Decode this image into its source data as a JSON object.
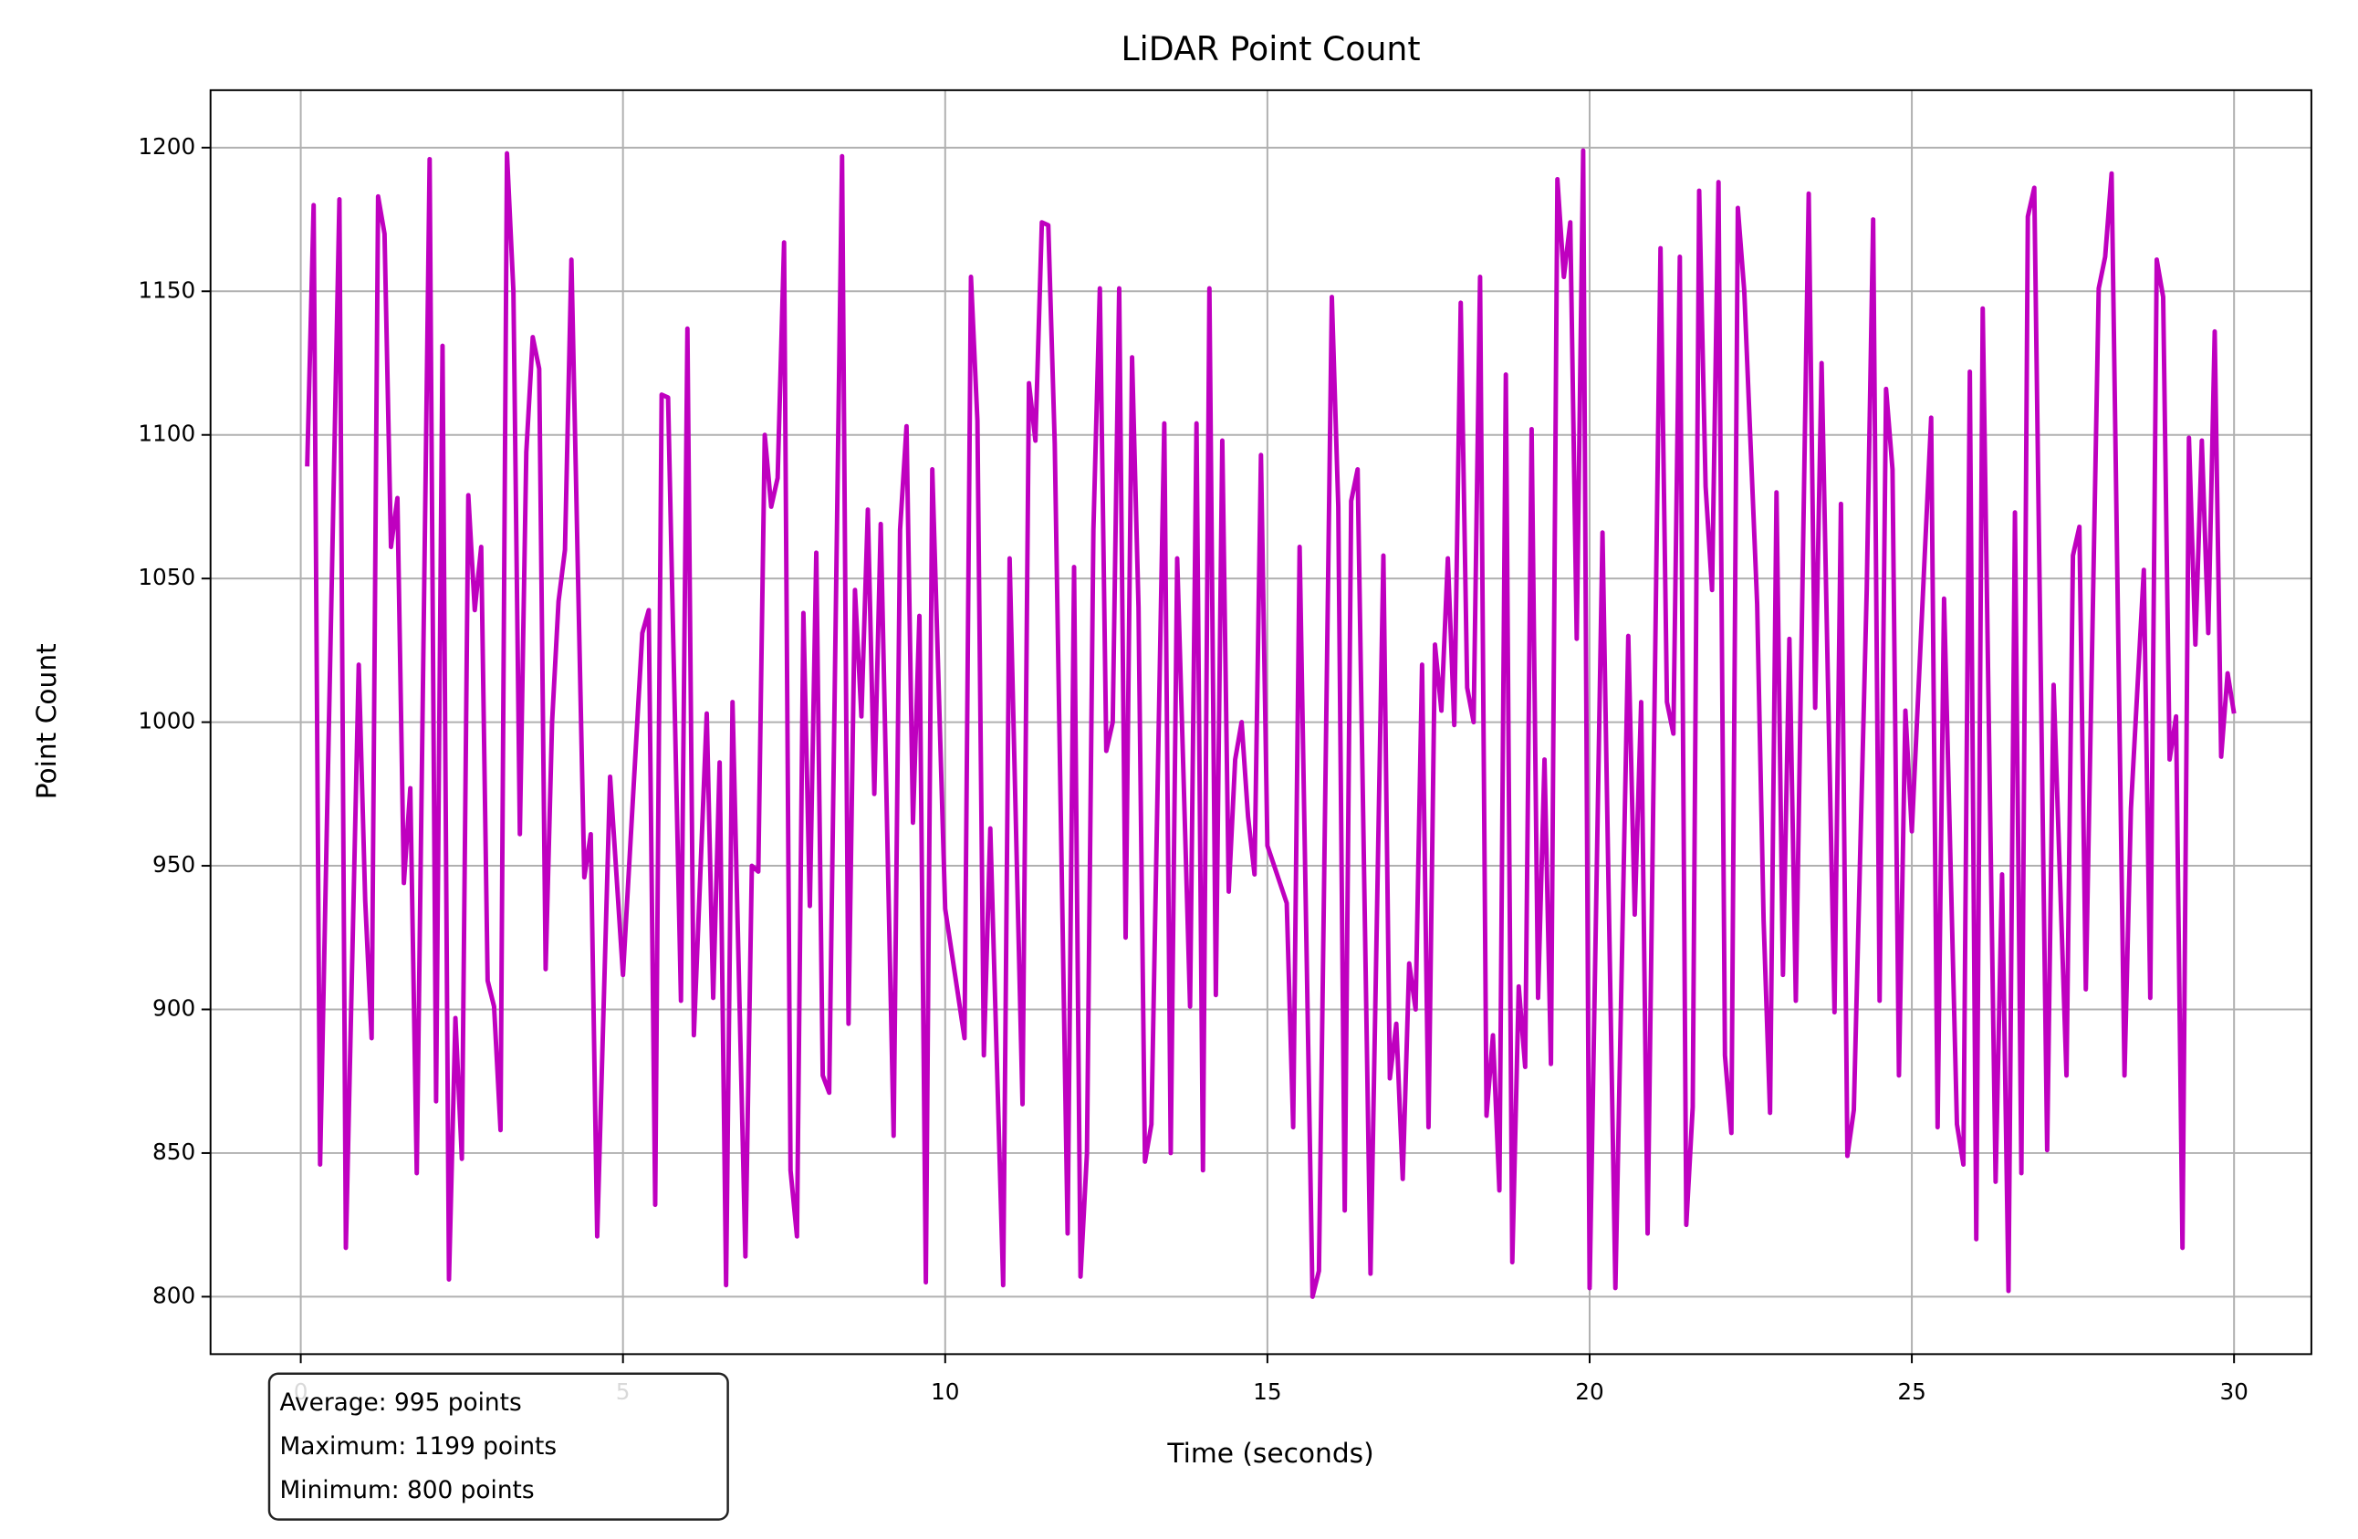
{
  "chart_data": {
    "type": "line",
    "title": "LiDAR Point Count",
    "x_label": "Time (seconds)",
    "y_label": "Point Count",
    "xlim": [
      -1.4,
      31.2
    ],
    "ylim": [
      780,
      1220
    ],
    "xticks": [
      0,
      5,
      10,
      15,
      20,
      25,
      30
    ],
    "yticks": [
      800,
      850,
      900,
      950,
      1000,
      1050,
      1100,
      1150,
      1200
    ],
    "grid": true,
    "stats": [
      "Average: 995 points",
      "Maximum: 1199 points",
      "Minimum: 800 points"
    ],
    "series": [
      {
        "color": "#bf00bf",
        "x": [
          0.1,
          0.2,
          0.3,
          0.6,
          0.7,
          0.9,
          1.0,
          1.1,
          1.2,
          1.3,
          1.4,
          1.5,
          1.6,
          1.7,
          1.8,
          2.0,
          2.1,
          2.2,
          2.3,
          2.4,
          2.5,
          2.6,
          2.7,
          2.8,
          2.9,
          3.0,
          3.1,
          3.2,
          3.3,
          3.4,
          3.5,
          3.6,
          3.7,
          3.8,
          3.9,
          4.0,
          4.1,
          4.2,
          4.4,
          4.5,
          4.6,
          4.8,
          5.0,
          5.3,
          5.4,
          5.5,
          5.6,
          5.7,
          5.9,
          6.0,
          6.1,
          6.3,
          6.4,
          6.5,
          6.6,
          6.7,
          6.9,
          7.0,
          7.1,
          7.2,
          7.3,
          7.4,
          7.5,
          7.6,
          7.7,
          7.8,
          7.9,
          8.0,
          8.1,
          8.2,
          8.4,
          8.5,
          8.6,
          8.7,
          8.8,
          8.9,
          9.0,
          9.2,
          9.3,
          9.4,
          9.5,
          9.6,
          9.7,
          9.8,
          10.0,
          10.3,
          10.4,
          10.5,
          10.6,
          10.7,
          10.9,
          11.0,
          11.2,
          11.3,
          11.4,
          11.5,
          11.6,
          11.7,
          11.9,
          12.0,
          12.1,
          12.2,
          12.3,
          12.4,
          12.5,
          12.6,
          12.7,
          12.8,
          12.9,
          13.0,
          13.1,
          13.2,
          13.4,
          13.5,
          13.6,
          13.7,
          13.8,
          13.9,
          14.0,
          14.1,
          14.2,
          14.3,
          14.4,
          14.5,
          14.6,
          14.7,
          14.8,
          14.9,
          15.0,
          15.3,
          15.4,
          15.5,
          15.7,
          15.8,
          16.0,
          16.1,
          16.2,
          16.3,
          16.4,
          16.6,
          16.8,
          16.9,
          17.0,
          17.1,
          17.2,
          17.3,
          17.4,
          17.5,
          17.6,
          17.7,
          17.8,
          17.9,
          18.0,
          18.1,
          18.2,
          18.3,
          18.4,
          18.5,
          18.6,
          18.7,
          18.8,
          18.9,
          19.0,
          19.1,
          19.2,
          19.3,
          19.4,
          19.5,
          19.6,
          19.7,
          19.8,
          19.9,
          20.0,
          20.2,
          20.4,
          20.6,
          20.7,
          20.8,
          20.9,
          21.1,
          21.2,
          21.3,
          21.4,
          21.5,
          21.6,
          21.7,
          21.8,
          21.9,
          22.0,
          22.1,
          22.2,
          22.3,
          22.4,
          22.6,
          22.7,
          22.8,
          22.9,
          23.0,
          23.1,
          23.2,
          23.4,
          23.5,
          23.6,
          23.8,
          23.9,
          24.0,
          24.1,
          24.3,
          24.4,
          24.5,
          24.6,
          24.7,
          24.8,
          24.9,
          25.0,
          25.3,
          25.4,
          25.5,
          25.7,
          25.8,
          25.9,
          26.0,
          26.1,
          26.3,
          26.4,
          26.5,
          26.6,
          26.7,
          26.8,
          26.9,
          27.1,
          27.2,
          27.4,
          27.5,
          27.6,
          27.7,
          27.9,
          28.0,
          28.1,
          28.3,
          28.4,
          28.6,
          28.7,
          28.8,
          28.9,
          29.0,
          29.1,
          29.2,
          29.3,
          29.4,
          29.5,
          29.6,
          29.7,
          29.8,
          29.9,
          30.0
        ],
        "values": [
          1089,
          1180,
          846,
          1182,
          817,
          1020,
          938,
          890,
          1183,
          1170,
          1061,
          1078,
          944,
          977,
          843,
          1196,
          868,
          1131,
          806,
          897,
          848,
          1079,
          1039,
          1061,
          910,
          901,
          858,
          1198,
          1150,
          961,
          1094,
          1134,
          1123,
          914,
          1000,
          1042,
          1060,
          1161,
          946,
          961,
          821,
          981,
          912,
          1031,
          1039,
          832,
          1114,
          1113,
          903,
          1137,
          891,
          1003,
          904,
          986,
          804,
          1007,
          814,
          950,
          948,
          1100,
          1075,
          1085,
          1167,
          844,
          821,
          1038,
          936,
          1059,
          877,
          871,
          1197,
          895,
          1046,
          1002,
          1074,
          975,
          1069,
          856,
          1067,
          1103,
          965,
          1037,
          805,
          1088,
          935,
          890,
          1155,
          1105,
          884,
          963,
          804,
          1057,
          867,
          1118,
          1098,
          1174,
          1173,
          1097,
          822,
          1054,
          807,
          850,
          1067,
          1151,
          990,
          1000,
          1151,
          925,
          1127,
          1040,
          847,
          860,
          1104,
          850,
          1057,
          980,
          901,
          1104,
          844,
          1151,
          905,
          1098,
          941,
          987,
          1000,
          967,
          947,
          1093,
          957,
          937,
          859,
          1061,
          800,
          809,
          1148,
          1075,
          830,
          1077,
          1088,
          808,
          1058,
          876,
          895,
          841,
          916,
          900,
          1020,
          859,
          1027,
          1004,
          1057,
          999,
          1146,
          1012,
          1000,
          1155,
          863,
          891,
          837,
          1121,
          812,
          908,
          880,
          1102,
          904,
          987,
          881,
          1189,
          1155,
          1174,
          1029,
          1199,
          803,
          1066,
          803,
          1030,
          933,
          1007,
          822,
          1165,
          1007,
          996,
          1162,
          825,
          866,
          1185,
          1082,
          1046,
          1188,
          884,
          857,
          1179,
          1150,
          1041,
          931,
          864,
          1080,
          912,
          1029,
          903,
          1184,
          1005,
          1125,
          899,
          1076,
          849,
          865,
          1046,
          1175,
          903,
          1116,
          1088,
          877,
          1004,
          962,
          1106,
          859,
          1043,
          860,
          846,
          1122,
          820,
          1144,
          840,
          947,
          802,
          1073,
          843,
          1176,
          1186,
          851,
          1013,
          877,
          1058,
          1068,
          907,
          1151,
          1162,
          1191,
          877,
          970,
          1053,
          904,
          1161,
          1148,
          987,
          1002,
          817,
          1099,
          1027,
          1098,
          1031,
          1136,
          988,
          1017,
          1003
        ]
      }
    ]
  }
}
